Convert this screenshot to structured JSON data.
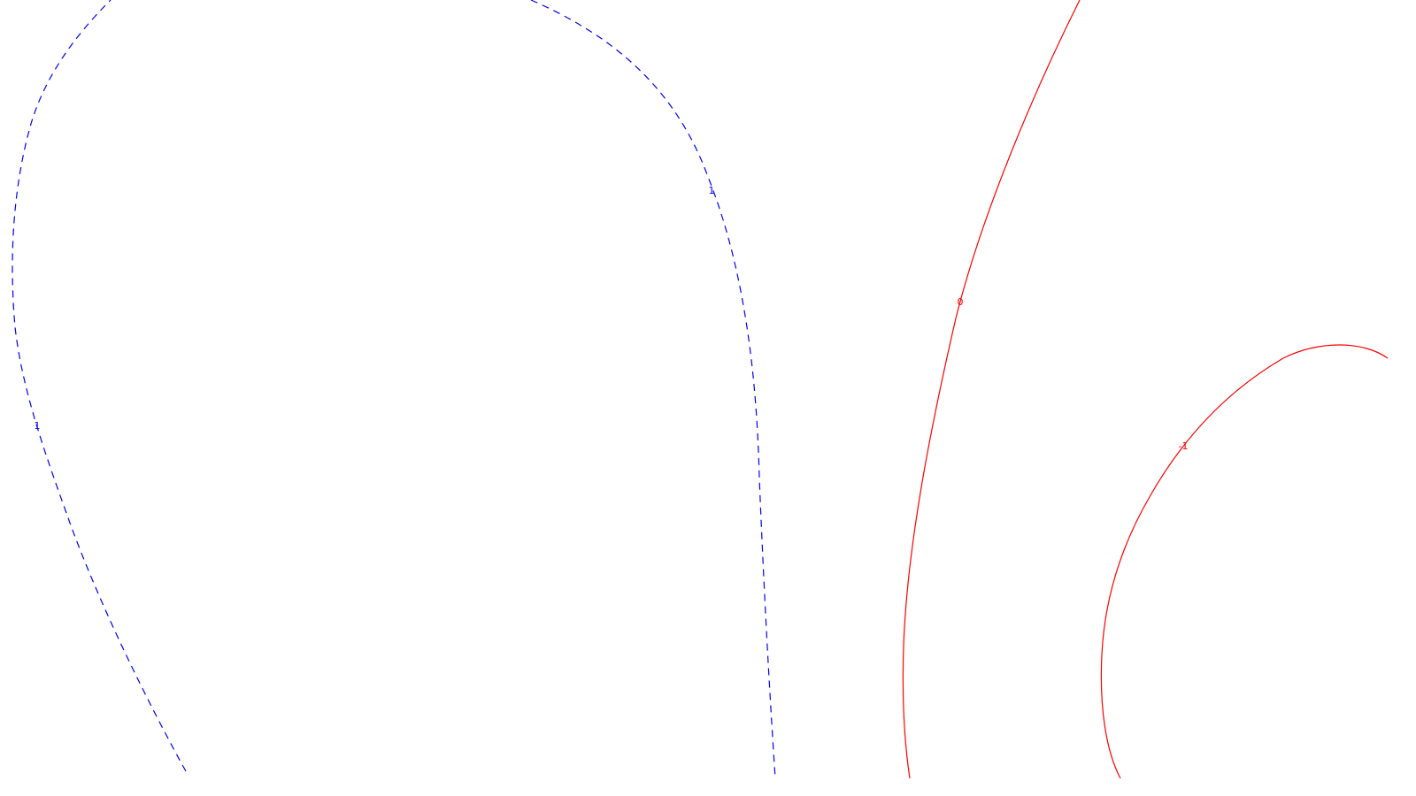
{
  "chart_data": {
    "type": "contour",
    "title": "",
    "xlabel": "",
    "ylabel": "",
    "grid": false,
    "colors": {
      "positive": "#0000ff",
      "zero": "#ff0000",
      "negative": "#ff0000",
      "background": "#ffffff"
    },
    "contours": [
      {
        "level": 1,
        "label": "1",
        "color": "#0000ff",
        "style": "dashed"
      },
      {
        "level": 0,
        "label": "0",
        "color": "#ff0000",
        "style": "solid"
      },
      {
        "level": -1,
        "label": "-1",
        "color": "#ff0000",
        "style": "solid"
      }
    ]
  }
}
